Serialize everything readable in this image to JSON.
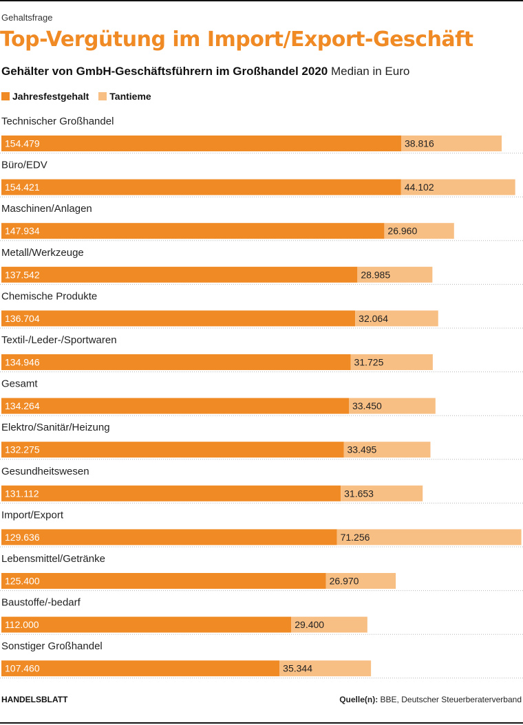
{
  "kicker": "Gehaltsfrage",
  "title": "Top-Vergütung im Import/Export-Geschäft",
  "subtitle_bold": "Gehälter von GmbH-Geschäftsführern im Großhandel 2020",
  "subtitle_light": "Median in Euro",
  "colors": {
    "fixed": "#f08a24",
    "bonus": "#f8bf85",
    "title": "#f08a24"
  },
  "footer": {
    "brand": "HANDELSBLATT",
    "source_label": "Quelle(n):",
    "source_text": "BBE, Deutscher Steuerberaterverband"
  },
  "chart_data": {
    "type": "bar",
    "orientation": "horizontal",
    "stacked": true,
    "legend": [
      "Jahresfestgehalt",
      "Tantieme"
    ],
    "legend_position": "top-left",
    "categories": [
      "Technischer Großhandel",
      "Büro/EDV",
      "Maschinen/Anlagen",
      "Metall/Werkzeuge",
      "Chemische Produkte",
      "Textil-/Leder-/Sportwaren",
      "Gesamt",
      "Elektro/Sanitär/Heizung",
      "Gesundheitswesen",
      "Import/Export",
      "Lebensmittel/Getränke",
      "Baustoffe/-bedarf",
      "Sonstiger Großhandel"
    ],
    "series": [
      {
        "name": "Jahresfestgehalt",
        "values": [
          154479,
          154421,
          147934,
          137542,
          136704,
          134946,
          134264,
          132275,
          131112,
          129636,
          125400,
          112000,
          107460
        ],
        "labels": [
          "154.479",
          "154.421",
          "147.934",
          "137.542",
          "136.704",
          "134.946",
          "134.264",
          "132.275",
          "131.112",
          "129.636",
          "125.400",
          "112.000",
          "107.460"
        ]
      },
      {
        "name": "Tantieme",
        "values": [
          38816,
          44102,
          26960,
          28985,
          32064,
          31725,
          33450,
          33495,
          31653,
          71256,
          26970,
          29400,
          35344
        ],
        "labels": [
          "38.816",
          "44.102",
          "26.960",
          "28.985",
          "32.064",
          "31.725",
          "33.450",
          "33.495",
          "31.653",
          "71.256",
          "26.970",
          "29.400",
          "35.344"
        ]
      }
    ],
    "xlim": [
      0,
      201000
    ],
    "grid": false
  }
}
